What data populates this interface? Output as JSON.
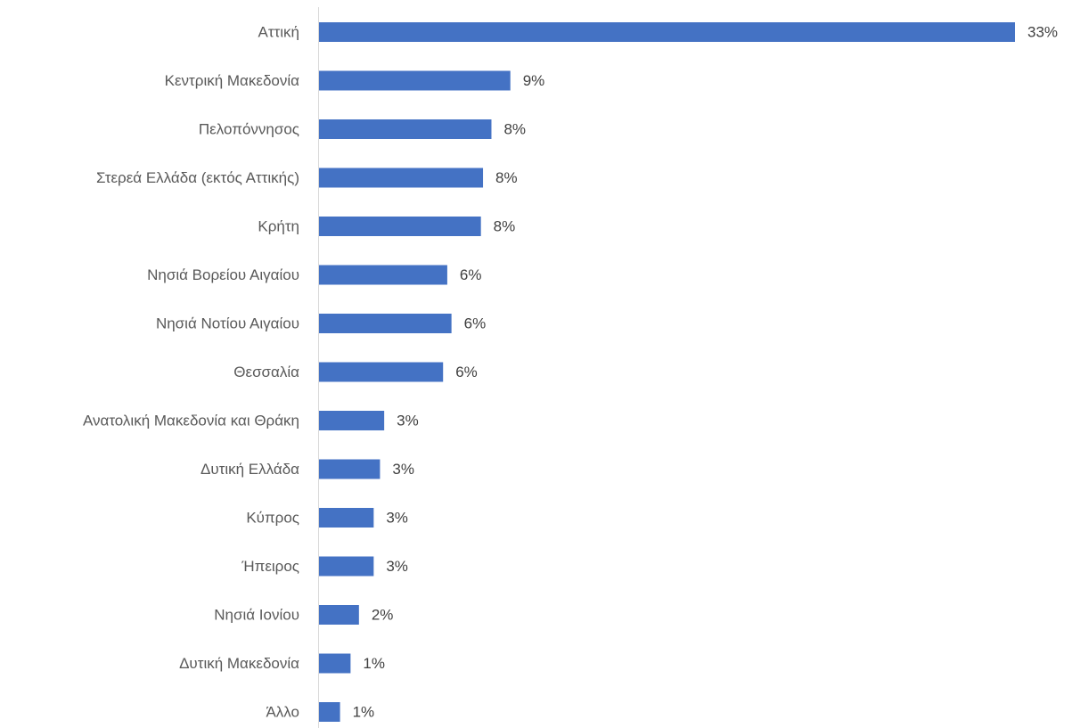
{
  "chart_data": {
    "type": "bar",
    "orientation": "horizontal",
    "categories": [
      "Αττική",
      "Κεντρική Μακεδονία",
      "Πελοπόννησος",
      "Στερεά Ελλάδα (εκτός Αττικής)",
      "Κρήτη",
      "Νησιά Βορείου Αιγαίου",
      "Νησιά Νοτίου Αιγαίου",
      "Θεσσαλία",
      "Ανατολική Μακεδονία και Θράκη",
      "Δυτική Ελλάδα",
      "Κύπρος",
      "Ήπειρος",
      "Νησιά Ιονίου",
      "Δυτική Μακεδονία",
      "Άλλο"
    ],
    "values": [
      33.1,
      9.1,
      8.2,
      7.8,
      7.7,
      6.1,
      6.3,
      5.9,
      3.1,
      2.9,
      2.6,
      2.6,
      1.9,
      1.5,
      1.0
    ],
    "value_labels": [
      "33%",
      "9%",
      "8%",
      "8%",
      "8%",
      "6%",
      "6%",
      "6%",
      "3%",
      "3%",
      "3%",
      "3%",
      "2%",
      "1%",
      "1%"
    ],
    "xlim": [
      0,
      33.1
    ],
    "bar_color": "#4472c4",
    "grid": false,
    "legend": "none"
  }
}
